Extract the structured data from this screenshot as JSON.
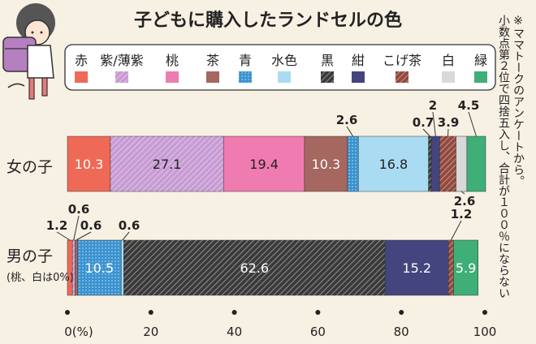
{
  "chart_data": {
    "type": "bar",
    "orientation": "horizontal",
    "stacked": true,
    "title": "子どもに購入したランドセルの色",
    "note": "※ママトークのアンケートから。小数点第２位で四捨五入し、合計が１００％にならない",
    "categories": [
      "女の子",
      "男の子"
    ],
    "category_notes": [
      "",
      "(桃、白は0%)"
    ],
    "x_ticks": [
      "0(%)",
      "20",
      "40",
      "60",
      "80",
      "100"
    ],
    "xlim": [
      0,
      100
    ],
    "grid": false,
    "legend_position": "top",
    "series": [
      {
        "name": "赤",
        "color": "#ee6a57",
        "pattern": "solid",
        "values": [
          10.3,
          1.2
        ]
      },
      {
        "name": "紫/薄紫",
        "color": "#c79bd3",
        "pattern": "hatch",
        "values": [
          27.1,
          0.6
        ]
      },
      {
        "name": "桃",
        "color": "#f07bb0",
        "pattern": "solid",
        "values": [
          19.4,
          0
        ]
      },
      {
        "name": "茶",
        "color": "#a5675f",
        "pattern": "solid",
        "values": [
          10.3,
          0.6
        ]
      },
      {
        "name": "青",
        "color": "#3a92d0",
        "pattern": "dots",
        "values": [
          2.6,
          10.5
        ]
      },
      {
        "name": "水色",
        "color": "#a9dcf2",
        "pattern": "solid",
        "values": [
          16.8,
          0.6
        ]
      },
      {
        "name": "黒",
        "color": "#3a3a3a",
        "pattern": "hatch",
        "values": [
          0.7,
          62.6
        ]
      },
      {
        "name": "紺",
        "color": "#44457e",
        "pattern": "solid",
        "values": [
          2.0,
          15.2
        ]
      },
      {
        "name": "こげ茶",
        "color": "#93493c",
        "pattern": "hatch",
        "values": [
          3.9,
          1.2
        ]
      },
      {
        "name": "白",
        "color": "#d9d9d9",
        "pattern": "solid",
        "values": [
          2.6,
          0
        ]
      },
      {
        "name": "緑",
        "color": "#3fae77",
        "pattern": "solid",
        "values": [
          4.5,
          5.9
        ]
      }
    ]
  }
}
